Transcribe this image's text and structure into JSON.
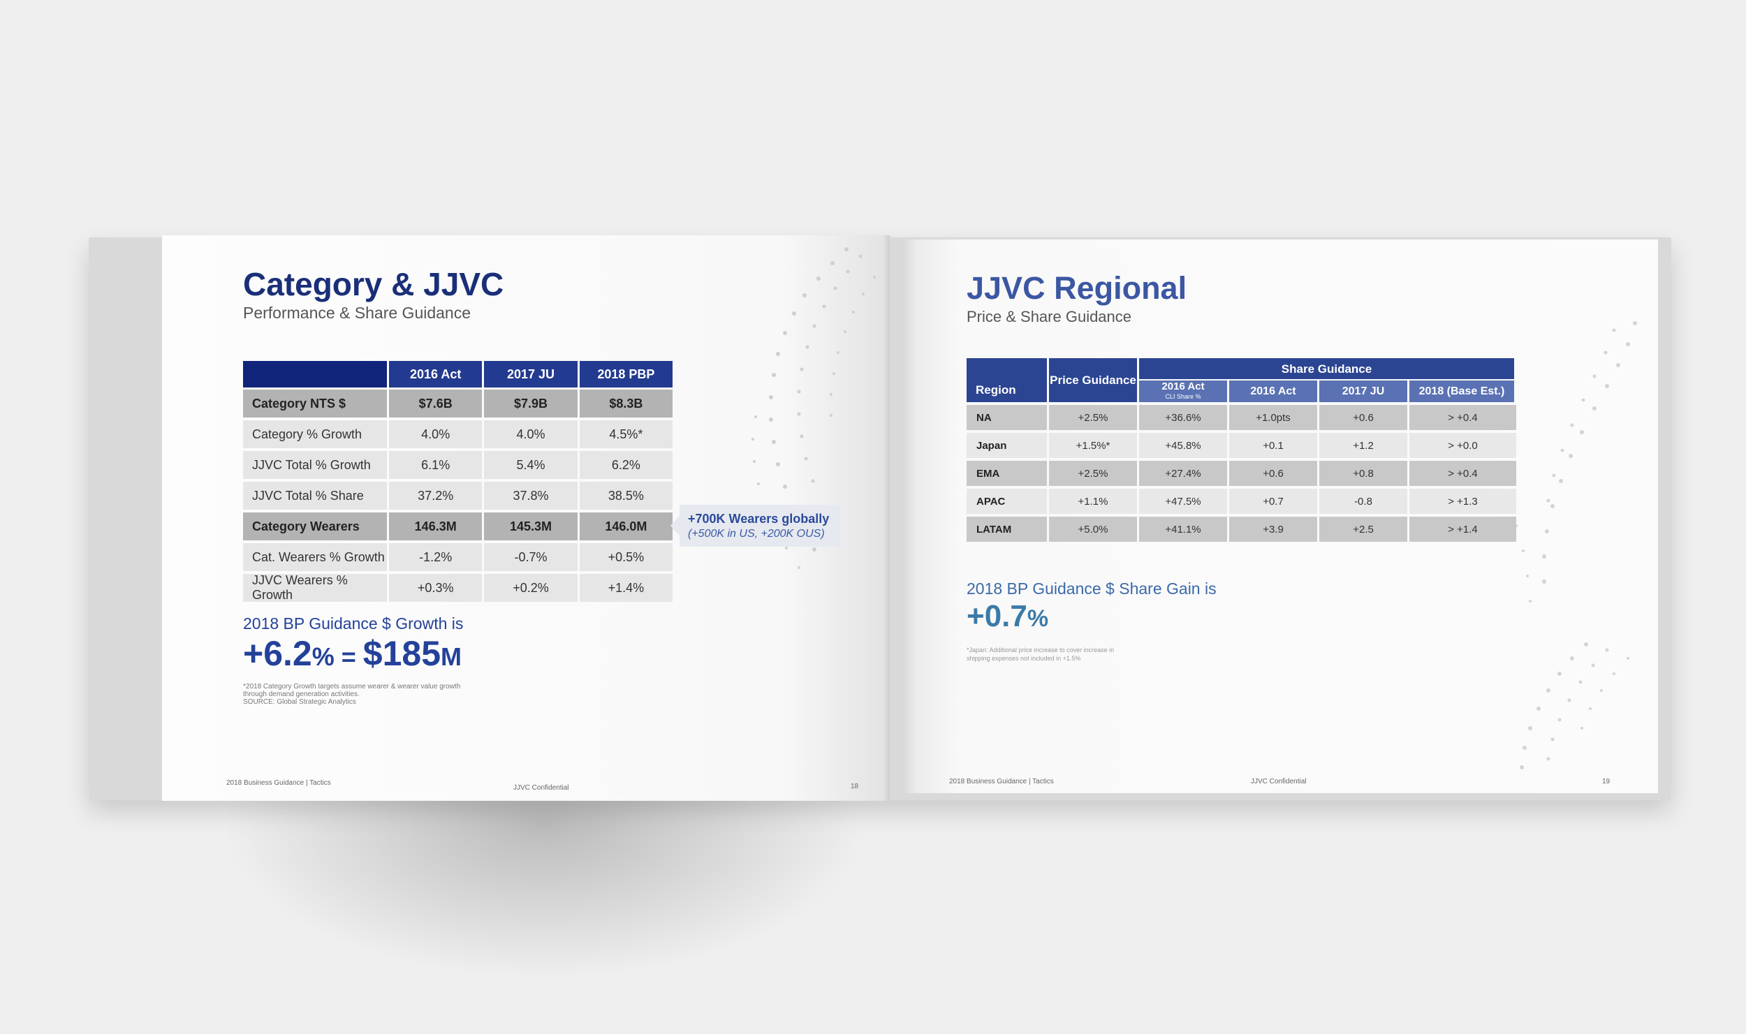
{
  "left": {
    "title": "Category & JJVC",
    "subtitle": "Performance & Share Guidance",
    "table": {
      "headers": [
        "",
        "2016 Act",
        "2017 JU",
        "2018 PBP"
      ],
      "rows": [
        {
          "label": "Category NTS $",
          "values": [
            "$7.6B",
            "$7.9B",
            "$8.3B"
          ],
          "style": "dark"
        },
        {
          "label": "Category % Growth",
          "values": [
            "4.0%",
            "4.0%",
            "4.5%*"
          ],
          "style": "light"
        },
        {
          "label": "JJVC Total % Growth",
          "values": [
            "6.1%",
            "5.4%",
            "6.2%"
          ],
          "style": "light"
        },
        {
          "label": "JJVC Total % Share",
          "values": [
            "37.2%",
            "37.8%",
            "38.5%"
          ],
          "style": "light"
        },
        {
          "label": "Category Wearers",
          "values": [
            "146.3M",
            "145.3M",
            "146.0M"
          ],
          "style": "dark"
        },
        {
          "label": "Cat. Wearers % Growth",
          "values": [
            "-1.2%",
            "-0.7%",
            "+0.5%"
          ],
          "style": "light"
        },
        {
          "label": "JJVC Wearers % Growth",
          "values": [
            "+0.3%",
            "+0.2%",
            "+1.4%"
          ],
          "style": "light"
        }
      ]
    },
    "callout": {
      "line1": "+700K Wearers globally",
      "line2": "(+500K in US, +200K OUS)"
    },
    "guidance_label": "2018 BP Guidance $ Growth is",
    "guidance_big": {
      "num1": "+6.2",
      "unit1": "%",
      "eq": " = ",
      "num2": "$185",
      "unit2": "M"
    },
    "footnote": [
      "*2018 Category Growth targets assume wearer & wearer value growth",
      "through demand generation activities.",
      "SOURCE: Global Strategic Analytics"
    ],
    "footer": {
      "left": "2018 Business Guidance | Tactics",
      "center": "JJVC Confidential",
      "page": "18"
    }
  },
  "right": {
    "title": "JJVC Regional",
    "subtitle": "Price & Share Guidance",
    "table": {
      "h_region": "Region",
      "h_price": "Price Guidance",
      "h_share": "Share Guidance",
      "sub_cli": "2016 Act",
      "sub_cli_small": "CLI Share %",
      "sub_headers": [
        "2016 Act",
        "2017 JU",
        "2018 (Base Est.)"
      ],
      "rows": [
        {
          "region": "NA",
          "values": [
            "+2.5%",
            "+36.6%",
            "+1.0pts",
            "+0.6",
            "> +0.4"
          ],
          "style": "dark"
        },
        {
          "region": "Japan",
          "values": [
            "+1.5%*",
            "+45.8%",
            "+0.1",
            "+1.2",
            "> +0.0"
          ],
          "style": "light"
        },
        {
          "region": "EMA",
          "values": [
            "+2.5%",
            "+27.4%",
            "+0.6",
            "+0.8",
            "> +0.4"
          ],
          "style": "dark"
        },
        {
          "region": "APAC",
          "values": [
            "+1.1%",
            "+47.5%",
            "+0.7",
            "-0.8",
            "> +1.3"
          ],
          "style": "light"
        },
        {
          "region": "LATAM",
          "values": [
            "+5.0%",
            "+41.1%",
            "+3.9",
            "+2.5",
            "> +1.4"
          ],
          "style": "dark"
        }
      ]
    },
    "guidance_label": "2018 BP Guidance $ Share Gain is",
    "guidance_big": {
      "num": "+0.7",
      "unit": "%"
    },
    "footnote": [
      "*Japan: Additional price increase to cover increase in",
      "shipping expenses not included in +1.5%"
    ],
    "footer": {
      "left": "2018 Business Guidance | Tactics",
      "center": "JJVC Confidential",
      "page": "19"
    }
  },
  "colors": {
    "navy": "#10257a",
    "header_blue": "#223a8f",
    "accent_blue": "#24419a",
    "right_header": "#2c4592"
  }
}
